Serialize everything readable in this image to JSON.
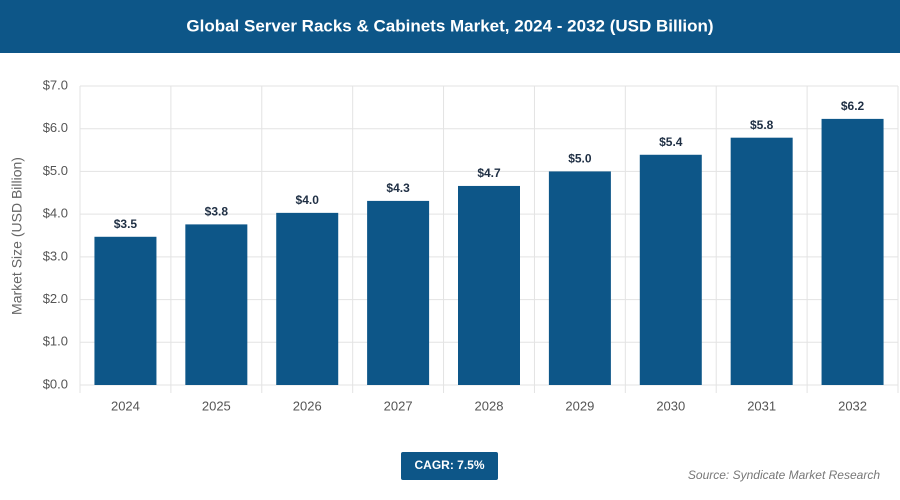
{
  "chart_data": {
    "type": "bar",
    "title": "Global Server Racks & Cabinets Market, 2024 - 2032 (USD Billion)",
    "y_label": "Market Size (USD Billion)",
    "categories": [
      "2024",
      "2025",
      "2026",
      "2027",
      "2028",
      "2029",
      "2030",
      "2031",
      "2032"
    ],
    "values": [
      3.47,
      3.76,
      4.03,
      4.31,
      4.66,
      5.0,
      5.39,
      5.79,
      6.23
    ],
    "value_labels": [
      "$3.5",
      "$3.8",
      "$4.0",
      "$4.3",
      "$4.7",
      "$5.0",
      "$5.4",
      "$5.8",
      "$6.2"
    ],
    "color": "#0d5688",
    "ylim": [
      0,
      7
    ],
    "yticks": [
      {
        "value": 0,
        "label": "$0.0"
      },
      {
        "value": 1,
        "label": "$1.0"
      },
      {
        "value": 2,
        "label": "$2.0"
      },
      {
        "value": 3,
        "label": "$3.0"
      },
      {
        "value": 4,
        "label": "$4.0"
      },
      {
        "value": 5,
        "label": "$5.0"
      },
      {
        "value": 6,
        "label": "$6.0"
      },
      {
        "value": 7,
        "label": "$7.0"
      }
    ],
    "grid": true,
    "cagr_label": "CAGR: 7.5%",
    "source": "Source: Syndicate Market Research"
  }
}
